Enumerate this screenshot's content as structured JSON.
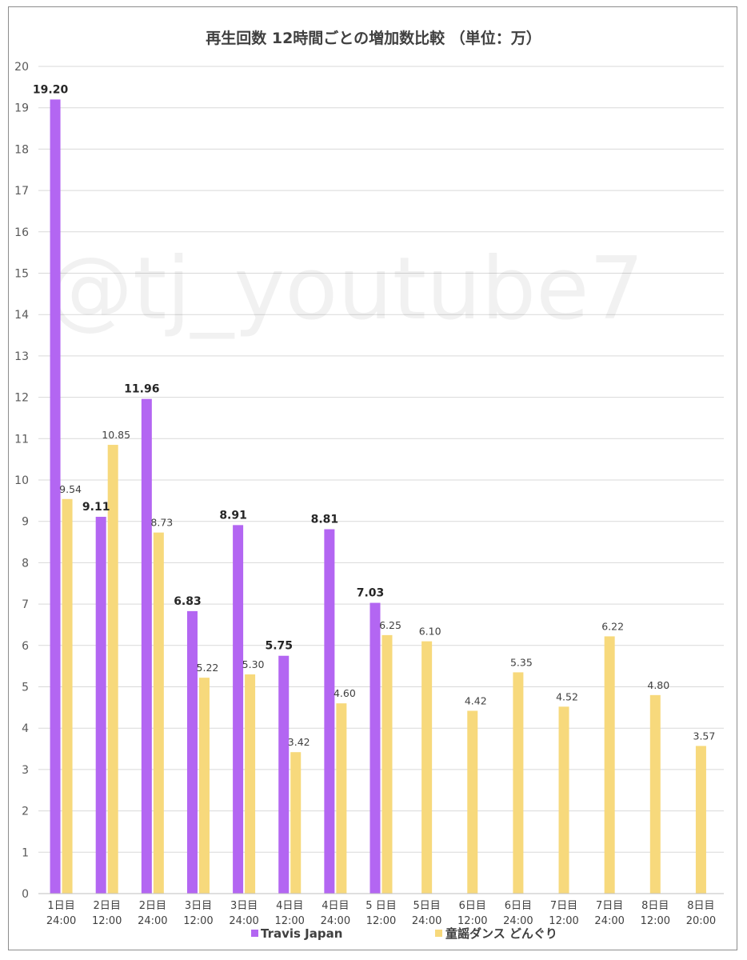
{
  "watermark": "@tj_youtube7",
  "chart_data": {
    "type": "bar",
    "title": "再生回数 12時間ごとの増加数比較 （単位：万）",
    "ylim": [
      0,
      20
    ],
    "yticks": [
      0,
      1,
      2,
      3,
      4,
      5,
      6,
      7,
      8,
      9,
      10,
      11,
      12,
      13,
      14,
      15,
      16,
      17,
      18,
      19,
      20
    ],
    "grid": true,
    "legend_position": "bottom",
    "categories": [
      [
        "1日目",
        "24:00"
      ],
      [
        "2日目",
        "12:00"
      ],
      [
        "2日目",
        "24:00"
      ],
      [
        "3日目",
        "12:00"
      ],
      [
        "3日目",
        "24:00"
      ],
      [
        "4日目",
        "12:00"
      ],
      [
        "4日目",
        "24:00"
      ],
      [
        "5 日目",
        "12:00"
      ],
      [
        "5日目",
        "24:00"
      ],
      [
        "6日目",
        "12:00"
      ],
      [
        "6日目",
        "24:00"
      ],
      [
        "7日目",
        "12:00"
      ],
      [
        "7日目",
        "24:00"
      ],
      [
        "8日目",
        "12:00"
      ],
      [
        "8日目",
        "20:00"
      ]
    ],
    "series": [
      {
        "name": "Travis Japan",
        "color": "#b366f2",
        "values": [
          19.2,
          9.11,
          11.96,
          6.83,
          8.91,
          5.75,
          8.81,
          7.03,
          null,
          null,
          null,
          null,
          null,
          null,
          null
        ],
        "labels": [
          "19.20",
          "9.11",
          "11.96",
          "6.83",
          "8.91",
          "5.75",
          "8.81",
          "7.03",
          null,
          null,
          null,
          null,
          null,
          null,
          null
        ]
      },
      {
        "name": "童謡ダンス どんぐり",
        "color": "#f7d97c",
        "values": [
          9.54,
          10.85,
          8.73,
          5.22,
          5.3,
          3.42,
          4.6,
          6.25,
          6.1,
          4.42,
          5.35,
          4.52,
          6.22,
          4.8,
          3.57
        ],
        "labels": [
          "9.54",
          "10.85",
          "8.73",
          "5.22",
          "5.30",
          "3.42",
          "4.60",
          "6.25",
          "6.10",
          "4.42",
          "5.35",
          "4.52",
          "6.22",
          "4.80",
          "3.57"
        ]
      }
    ]
  }
}
